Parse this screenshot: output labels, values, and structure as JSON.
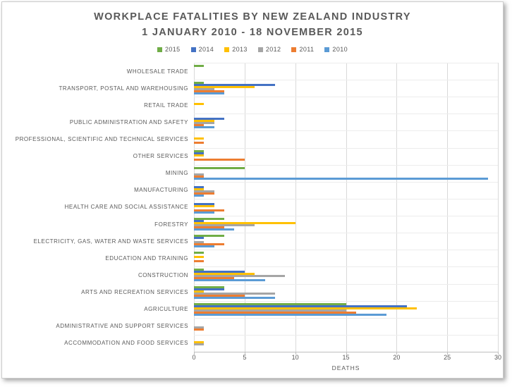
{
  "chart_data": {
    "type": "bar",
    "orientation": "horizontal",
    "title_lines": [
      "WORKPLACE FATALITIES BY NEW ZEALAND INDUSTRY",
      "1 JANUARY 2010 - 18 NOVEMBER 2015"
    ],
    "xlabel": "DEATHS",
    "xlim": [
      0,
      30
    ],
    "xticks": [
      0,
      5,
      10,
      15,
      20,
      25,
      30
    ],
    "grid": true,
    "legend_position": "top",
    "categories": [
      "WHOLESALE TRADE",
      "TRANSPORT, POSTAL AND WAREHOUSING",
      "RETAIL TRADE",
      "PUBLIC ADMINISTRATION AND SAFETY",
      "PROFESSIONAL, SCIENTIFIC AND TECHNICAL SERVICES",
      "OTHER SERVICES",
      "MINING",
      "MANUFACTURING",
      "HEALTH CARE AND SOCIAL ASSISTANCE",
      "FORESTRY",
      "ELECTRICITY, GAS, WATER AND WASTE SERVICES",
      "EDUCATION AND TRAINING",
      "CONSTRUCTION",
      "ARTS AND RECREATION SERVICES",
      "AGRICULTURE",
      "ADMINISTRATIVE AND SUPPORT SERVICES",
      "ACCOMMODATION AND FOOD SERVICES"
    ],
    "series": [
      {
        "name": "2015",
        "color": "#70AD47",
        "values": [
          1,
          1,
          0,
          0,
          0,
          1,
          5,
          0,
          0,
          3,
          3,
          1,
          1,
          3,
          15,
          0,
          0
        ]
      },
      {
        "name": "2014",
        "color": "#4472C4",
        "values": [
          0,
          8,
          0,
          3,
          0,
          1,
          0,
          1,
          2,
          1,
          1,
          0,
          5,
          3,
          21,
          0,
          0
        ]
      },
      {
        "name": "2013",
        "color": "#FFC000",
        "values": [
          0,
          6,
          1,
          2,
          1,
          1,
          0,
          1,
          2,
          10,
          0,
          1,
          6,
          1,
          22,
          0,
          1
        ]
      },
      {
        "name": "2012",
        "color": "#A5A5A5",
        "values": [
          0,
          2,
          0,
          2,
          0,
          0,
          1,
          2,
          0,
          6,
          1,
          0,
          9,
          8,
          15,
          1,
          1
        ]
      },
      {
        "name": "2011",
        "color": "#ED7D31",
        "values": [
          0,
          3,
          0,
          1,
          1,
          5,
          1,
          2,
          3,
          3,
          3,
          1,
          4,
          5,
          16,
          1,
          0
        ]
      },
      {
        "name": "2010",
        "color": "#5B9BD5",
        "values": [
          0,
          3,
          0,
          2,
          0,
          0,
          29,
          1,
          2,
          4,
          2,
          0,
          7,
          8,
          19,
          0,
          0
        ]
      }
    ],
    "colors": {
      "title_text": "#595959",
      "axis_text": "#595959",
      "gridline": "#d9d9d9",
      "axis_line": "#bfbfbf"
    }
  }
}
